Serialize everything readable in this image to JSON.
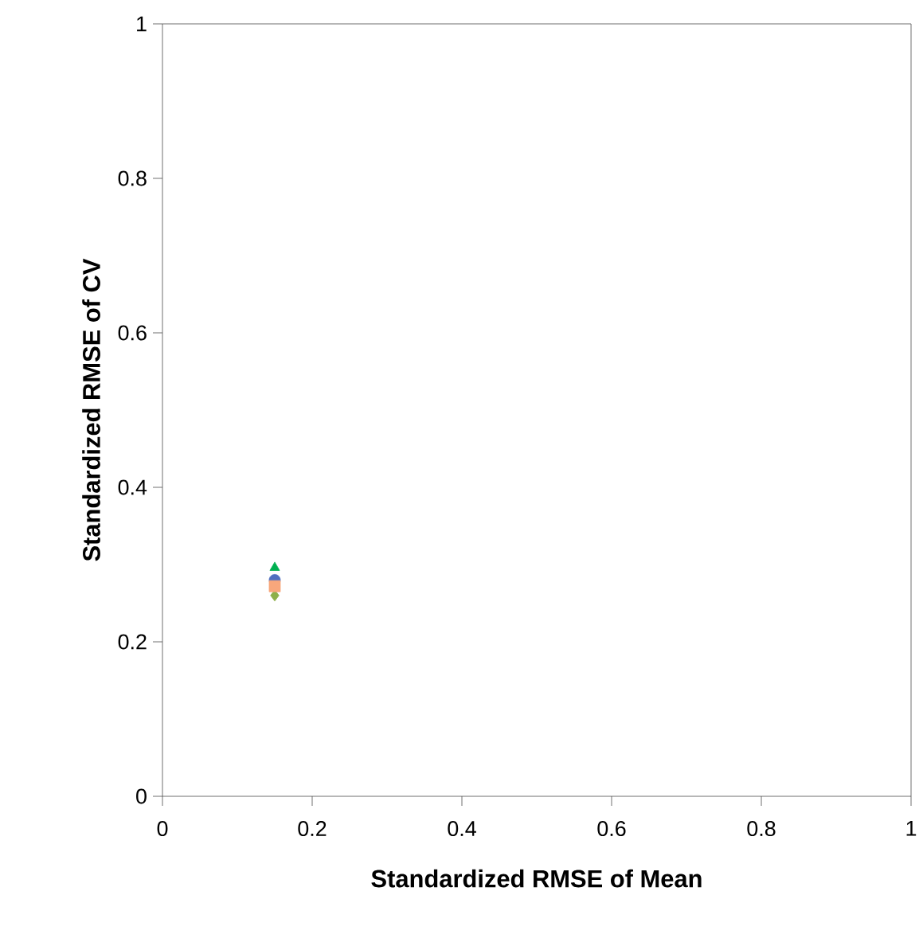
{
  "chart_data": {
    "type": "scatter",
    "xlabel": "Standardized RMSE of  Mean",
    "ylabel": "Standardized RMSE of CV",
    "xlim": [
      0,
      1
    ],
    "ylim": [
      0,
      1
    ],
    "xticks": [
      0,
      0.2,
      0.4,
      0.6,
      0.8,
      1
    ],
    "yticks": [
      0,
      0.2,
      0.4,
      0.6,
      0.8,
      1
    ],
    "grid": false,
    "x": [
      0.15
    ],
    "series": [
      {
        "color": "#4f6fc0",
        "marker": "circle",
        "values": [
          0.28
        ]
      },
      {
        "color": "#8db04a",
        "marker": "diamond",
        "values": [
          0.26
        ]
      },
      {
        "color": "#f8a77c",
        "marker": "square",
        "values": [
          0.272
        ]
      },
      {
        "color": "#00b050",
        "marker": "triangle",
        "values": [
          0.296
        ]
      }
    ]
  }
}
